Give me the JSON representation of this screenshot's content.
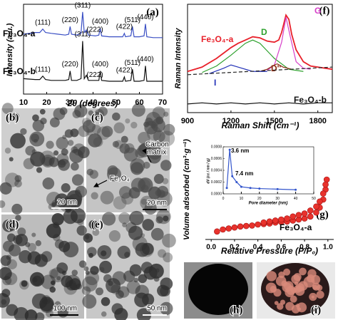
{
  "chart_data": [
    {
      "type": "line",
      "xlabel": "2θ (degrees)",
      "ylabel": "Intensity (a.u.)",
      "panel_label": "(a)",
      "x": [
        10,
        15,
        17,
        18.3,
        19.5,
        22,
        25,
        28,
        29.5,
        30.1,
        30.7,
        33,
        34.8,
        35.5,
        36.2,
        37.1,
        38,
        41,
        42.5,
        43.1,
        43.7,
        47,
        50,
        52.8,
        53.5,
        54,
        56.3,
        57,
        57.7,
        60,
        62,
        62.6,
        63.2,
        66,
        70
      ],
      "xlim": [
        10,
        70
      ],
      "xticks": [
        10,
        20,
        30,
        40,
        50,
        60,
        70
      ],
      "ylim": [
        0,
        105
      ],
      "peaks": [
        18.3,
        30.1,
        35.5,
        37.1,
        43.1,
        53.5,
        57,
        62.6
      ],
      "series": [
        {
          "name": "Fe₃O₄-a",
          "color": "#3a4fc4",
          "values": [
            70,
            72,
            72,
            76,
            72,
            71,
            70,
            69,
            70,
            79,
            70,
            69,
            71,
            96,
            72,
            75,
            69,
            68,
            69,
            77,
            68,
            67,
            67,
            67,
            71,
            67,
            68,
            79,
            67,
            67,
            68,
            82,
            67,
            66,
            66
          ],
          "peak_labels": [
            "(111)",
            "(220)",
            "(311)",
            "(222)",
            "(400)",
            "(422)",
            "(511)",
            "(440)"
          ]
        },
        {
          "name": "Fe₃O₄-b",
          "color": "#111111",
          "values": [
            18,
            17,
            17,
            21,
            17,
            16,
            16,
            16,
            17,
            27,
            16,
            16,
            18,
            62,
            18,
            22,
            16,
            16,
            16,
            27,
            16,
            15,
            15,
            15,
            20,
            15,
            16,
            29,
            15,
            15,
            16,
            33,
            15,
            15,
            15
          ],
          "peak_labels": [
            "(111)",
            "(220)",
            "(311)",
            "(222)",
            "(400)",
            "(422)",
            "(511)",
            "(440)"
          ]
        }
      ]
    },
    {
      "type": "line",
      "xlabel": "Raman Shift (cm⁻¹)",
      "ylabel": "Raman Intensity",
      "panel_label": "(f)",
      "xlim": [
        900,
        1900
      ],
      "xticks": [
        900,
        1200,
        1500,
        1800
      ],
      "ylim": [
        0,
        100
      ],
      "series": [
        {
          "name": "Fe₃O₄-a",
          "color": "#e8202a",
          "x": [
            900,
            1000,
            1100,
            1150,
            1200,
            1250,
            1300,
            1350,
            1400,
            1450,
            1500,
            1530,
            1550,
            1580,
            1600,
            1620,
            1650,
            1700,
            1750,
            1800,
            1850,
            1900
          ],
          "values": [
            38,
            42,
            50,
            55,
            60,
            64,
            67,
            70,
            69,
            66,
            65,
            67,
            74,
            90,
            86,
            72,
            58,
            47,
            43,
            42,
            41,
            40
          ]
        },
        {
          "name": "D",
          "color": "#2ca02c",
          "x": [
            1000,
            1100,
            1200,
            1300,
            1350,
            1400,
            1500,
            1600,
            1700
          ],
          "values": [
            37,
            43,
            53,
            64,
            67,
            64,
            50,
            40,
            38
          ]
        },
        {
          "name": "G",
          "color": "#d63fc8",
          "x": [
            1450,
            1500,
            1550,
            1580,
            1610,
            1650,
            1700,
            1750
          ],
          "values": [
            39,
            44,
            65,
            88,
            70,
            47,
            41,
            40
          ]
        },
        {
          "name": "D''",
          "color": "#8b2a12",
          "x": [
            1400,
            1450,
            1500,
            1520,
            1560,
            1620
          ],
          "values": [
            38,
            40,
            44,
            45,
            42,
            40
          ]
        },
        {
          "name": "I",
          "color": "#2433b8",
          "x": [
            1050,
            1150,
            1200,
            1250,
            1350,
            1450
          ],
          "values": [
            36,
            41,
            44,
            42,
            38,
            38
          ]
        },
        {
          "color": "#222222",
          "dashed": true,
          "x": [
            900,
            1900
          ],
          "values": [
            35,
            42
          ]
        },
        {
          "name": "Fe₃O₄-b",
          "color": "#111111",
          "x": [
            900,
            1000,
            1100,
            1200,
            1300,
            1400,
            1500,
            1600,
            1700,
            1800,
            1900
          ],
          "values": [
            8,
            9,
            8,
            9,
            8,
            9,
            8,
            9,
            8,
            9,
            9
          ]
        }
      ]
    },
    {
      "type": "scatter",
      "xlabel": "Relative Pressure (P/P₀)",
      "ylabel": "Volume adsorbed (cm³·g⁻¹)",
      "panel_label": "(g)",
      "sample_label": "Fe₃O₄-a",
      "xlim": [
        -0.05,
        1.05
      ],
      "xticks": [
        {
          "value": 0,
          "label": "0.0"
        },
        {
          "value": 0.2,
          "label": "0.2"
        },
        {
          "value": 0.4,
          "label": "0.4"
        },
        {
          "value": 0.6,
          "label": "0.6"
        },
        {
          "value": 0.8,
          "label": "0.8"
        },
        {
          "value": 1,
          "label": "1.0"
        }
      ],
      "ylim": [
        0,
        100
      ],
      "series": [
        {
          "color": "#e8322c",
          "x": [
            0.05,
            0.1,
            0.15,
            0.2,
            0.25,
            0.3,
            0.35,
            0.4,
            0.45,
            0.5,
            0.55,
            0.6,
            0.65,
            0.7,
            0.75,
            0.8,
            0.85,
            0.9,
            0.93,
            0.96,
            0.98,
            0.99
          ],
          "values": [
            8,
            10,
            11,
            12,
            13,
            13.5,
            14,
            15,
            15.5,
            16,
            17,
            17.5,
            18,
            19,
            20,
            21,
            23,
            27,
            32,
            40,
            50,
            60
          ]
        },
        {
          "color": "#e8322c",
          "x": [
            0.45,
            0.5,
            0.55,
            0.6,
            0.65,
            0.7,
            0.75,
            0.8,
            0.85,
            0.9,
            0.93,
            0.96,
            0.98
          ],
          "values": [
            17,
            18,
            19,
            20,
            21,
            23,
            24.5,
            26,
            29,
            33,
            38,
            46,
            55
          ]
        }
      ]
    },
    {
      "type": "line",
      "markers": true,
      "xlabel": "Pore diameter (nm)",
      "ylabel": "dV (cc / nm / g)",
      "annotations": [
        "3.6 nm",
        "7.4 nm"
      ],
      "xlim": [
        0,
        50
      ],
      "xticks": [
        0,
        10,
        20,
        30,
        40,
        50
      ],
      "ylim": [
        0,
        0.0008
      ],
      "yticks": [
        {
          "value": 0,
          "label": "0.0000"
        },
        {
          "value": 0.0002,
          "label": "0.0002"
        },
        {
          "value": 0.0004,
          "label": "0.0004"
        },
        {
          "value": 0.0006,
          "label": "0.0006"
        },
        {
          "value": 0.0008,
          "label": "0.0008"
        }
      ],
      "series": [
        {
          "color": "#3355cc",
          "x": [
            2,
            3.6,
            5,
            7.4,
            10,
            15,
            20,
            30,
            40
          ],
          "values": [
            0.0001,
            0.00075,
            0.0003,
            0.0002,
            0.00012,
            0.0001,
            9e-05,
            8e-05,
            7e-05
          ]
        }
      ]
    }
  ],
  "panels": [
    {
      "label": "(b)",
      "scale": "20 nm"
    },
    {
      "label": "(c)",
      "annotations": [
        "Fe₃O₄",
        "Carbon",
        "matrix"
      ],
      "scale": "20 nm"
    },
    {
      "label": "(d)",
      "scale": "100 nm"
    },
    {
      "label": "(e)",
      "scale": "50 nm"
    },
    {
      "label": "(h)"
    },
    {
      "label": "(i)"
    }
  ]
}
